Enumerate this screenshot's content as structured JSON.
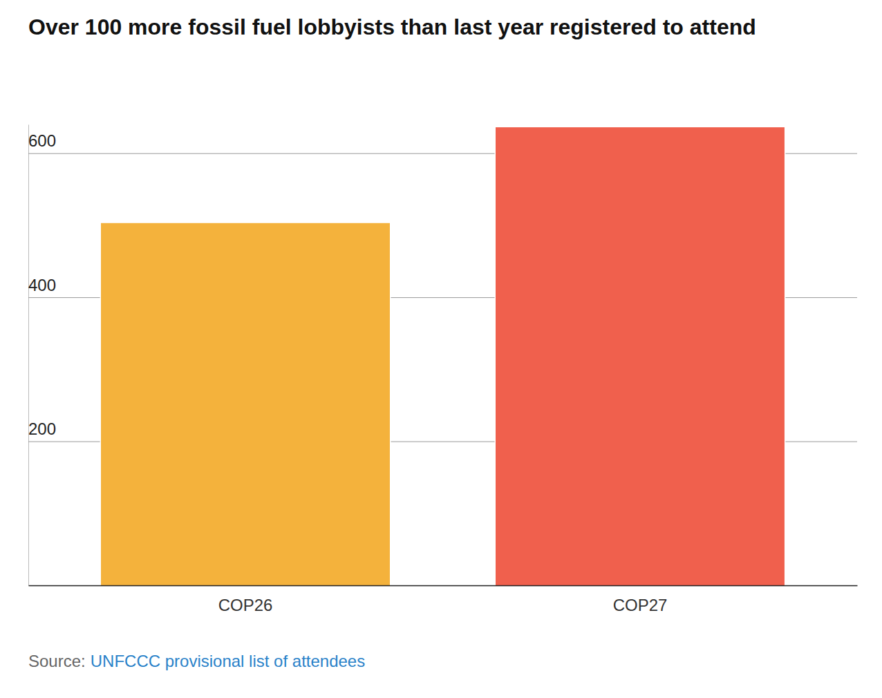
{
  "chart_data": {
    "type": "bar",
    "title": "Over 100 more fossil fuel lobbyists than last year registered to attend",
    "categories": [
      "COP26",
      "COP27"
    ],
    "values": [
      503,
      636
    ],
    "colors": [
      "#f4b23c",
      "#f0604d"
    ],
    "ylim": [
      0,
      640
    ],
    "yticks": [
      200,
      400,
      600
    ],
    "grid": true,
    "source_label": "Source:",
    "source": "UNFCCC provisional list of attendees"
  }
}
